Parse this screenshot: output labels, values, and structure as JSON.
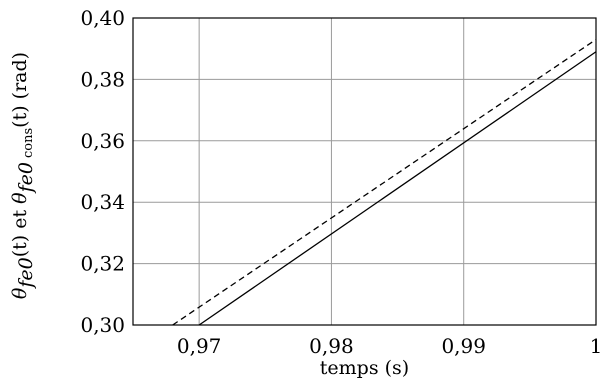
{
  "chart_data": {
    "type": "line",
    "xlabel": "temps (s)",
    "ylabel": "θfe0(t) et θfe0 cons(t) (rad)",
    "ylabel_parts": {
      "theta1": "θ",
      "sub1": "fe0",
      "arg1": "(t)",
      "mid": " et ",
      "theta2": "θ",
      "sub2": "fe0",
      "sub2b": "cons",
      "arg2": "(t)",
      "unit": " (rad)"
    },
    "xlim": [
      0.965,
      1.0
    ],
    "ylim": [
      0.3,
      0.4
    ],
    "xticks": [
      0.97,
      0.98,
      0.99,
      1.0
    ],
    "xtick_labels": [
      "0,97",
      "0,98",
      "0,99",
      "1"
    ],
    "yticks": [
      0.3,
      0.32,
      0.34,
      0.36,
      0.38,
      0.4
    ],
    "ytick_labels": [
      "0,30",
      "0,32",
      "0,34",
      "0,36",
      "0,38",
      "0,40"
    ],
    "grid": true,
    "series": [
      {
        "style": "solid",
        "color": "#000000",
        "x": [
          0.97,
          1.0
        ],
        "y": [
          0.3,
          0.389
        ]
      },
      {
        "style": "dashed",
        "color": "#000000",
        "x": [
          0.968,
          1.0
        ],
        "y": [
          0.3,
          0.393
        ]
      }
    ]
  }
}
